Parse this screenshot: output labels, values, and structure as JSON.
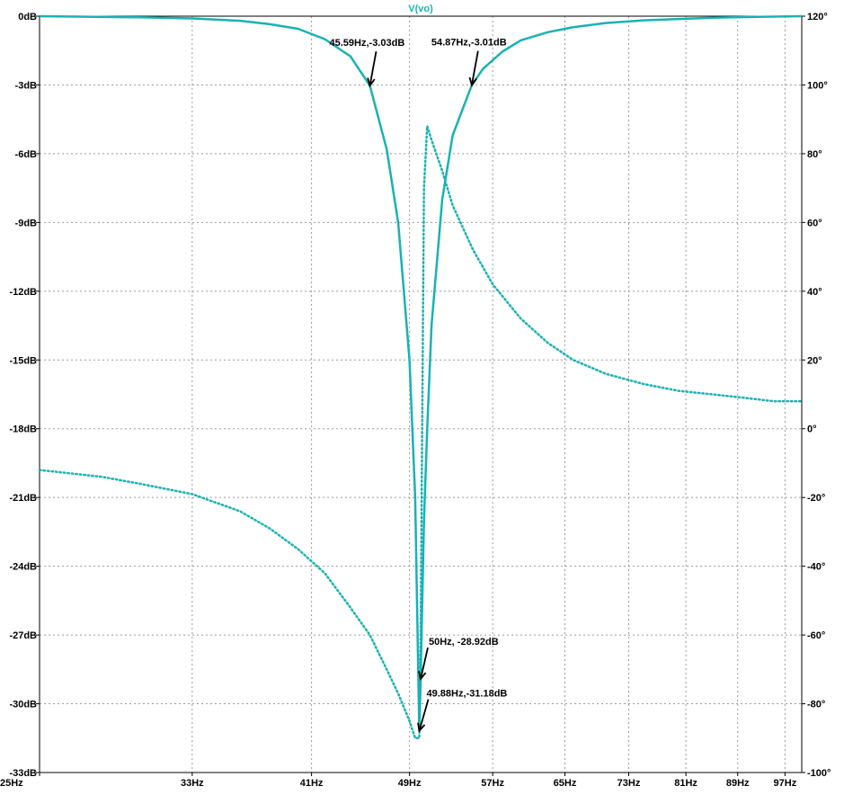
{
  "chart_data": {
    "type": "line",
    "title": "V(vo)",
    "x_scale": "log",
    "xlim": [
      25,
      100
    ],
    "ylim": [
      -33,
      0
    ],
    "y2lim": [
      -100,
      120
    ],
    "x_ticks": [
      "25Hz",
      "33Hz",
      "41Hz",
      "49Hz",
      "57Hz",
      "65Hz",
      "73Hz",
      "81Hz",
      "89Hz",
      "97Hz"
    ],
    "x_tick_values": [
      25,
      33,
      41,
      49,
      57,
      65,
      73,
      81,
      89,
      97
    ],
    "y_ticks": [
      "0dB",
      "-3dB",
      "-6dB",
      "-9dB",
      "-12dB",
      "-15dB",
      "-18dB",
      "-21dB",
      "-24dB",
      "-27dB",
      "-30dB",
      "-33dB"
    ],
    "y_tick_values": [
      0,
      -3,
      -6,
      -9,
      -12,
      -15,
      -18,
      -21,
      -24,
      -27,
      -30,
      -33
    ],
    "y2_ticks": [
      "120°",
      "100°",
      "80°",
      "60°",
      "40°",
      "20°",
      "0°",
      "-20°",
      "-40°",
      "-60°",
      "-80°",
      "-100°"
    ],
    "y2_tick_values": [
      120,
      100,
      80,
      60,
      40,
      20,
      0,
      -20,
      -40,
      -60,
      -80,
      -100
    ],
    "grid": true,
    "color": "#19b2b2",
    "series": [
      {
        "style": "solid",
        "axis": "left",
        "x": [
          25,
          30,
          33,
          36,
          38,
          40,
          42,
          44,
          45.59,
          47,
          48,
          49,
          49.5,
          49.88,
          50,
          50.3,
          50.6,
          51,
          52,
          53,
          54.87,
          56,
          58,
          60,
          63,
          66,
          70,
          75,
          80,
          85,
          90,
          95,
          100
        ],
        "values": [
          0,
          -0.05,
          -0.1,
          -0.2,
          -0.35,
          -0.55,
          -1.0,
          -1.75,
          -3.03,
          -5.8,
          -9.0,
          -15.0,
          -21.0,
          -31.18,
          -28.92,
          -22.0,
          -18.0,
          -13.5,
          -8.0,
          -5.2,
          -3.01,
          -2.3,
          -1.55,
          -1.05,
          -0.7,
          -0.48,
          -0.3,
          -0.18,
          -0.12,
          -0.07,
          -0.04,
          -0.02,
          0
        ]
      },
      {
        "style": "dotted",
        "axis": "right",
        "x": [
          25,
          28,
          30,
          33,
          36,
          38,
          40,
          42,
          44,
          45.59,
          47,
          48,
          49,
          49.5,
          49.88,
          50,
          50.3,
          50.6,
          51,
          52,
          53,
          55,
          57,
          60,
          63,
          66,
          70,
          75,
          80,
          85,
          90,
          95,
          100
        ],
        "values": [
          -12,
          -14,
          -16,
          -19,
          -24,
          -29,
          -35,
          -42,
          -52,
          -60,
          -70,
          -77,
          -85,
          -90,
          -90,
          -60,
          70,
          88,
          84,
          75,
          65,
          52,
          42,
          32,
          25,
          20,
          16,
          13,
          11,
          10,
          9,
          8,
          8
        ]
      }
    ],
    "annotations": [
      {
        "label": "45.59Hz,-3.03dB",
        "x": 45.59,
        "y": -3.03
      },
      {
        "label": "54.87Hz,-3.01dB",
        "x": 54.87,
        "y": -3.01
      },
      {
        "label": "50Hz, -28.92dB",
        "x": 50,
        "y": -28.92
      },
      {
        "label": "49.88Hz,-31.18dB",
        "x": 49.88,
        "y": -31.18
      }
    ]
  }
}
